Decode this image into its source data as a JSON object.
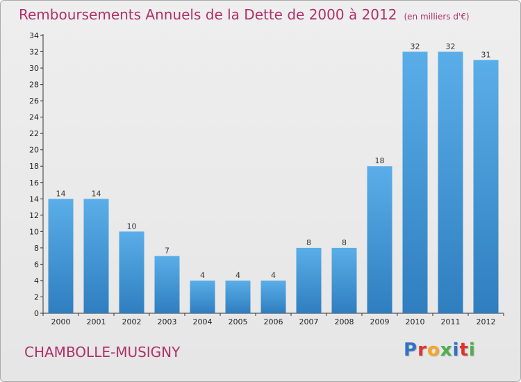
{
  "header": {
    "title": "Remboursements Annuels de la Dette de 2000 à 2012",
    "subtitle": "(en milliers d'€)"
  },
  "footer": {
    "commune": "CHAMBOLLE-MUSIGNY",
    "logo_letters": [
      "P",
      "r",
      "o",
      "x",
      "i",
      "t",
      "i"
    ],
    "logo_colors": [
      "#2e73c8",
      "#e03232",
      "#f5a623",
      "#4caf50",
      "#2e73c8",
      "#e03232",
      "#4caf50"
    ]
  },
  "chart_data": {
    "type": "bar",
    "categories": [
      "2000",
      "2001",
      "2002",
      "2003",
      "2004",
      "2005",
      "2006",
      "2007",
      "2008",
      "2009",
      "2010",
      "2011",
      "2012"
    ],
    "values": [
      14,
      14,
      10,
      7,
      4,
      4,
      4,
      8,
      8,
      18,
      32,
      32,
      31
    ],
    "ylim": [
      0,
      34
    ],
    "yticks": [
      0,
      2,
      4,
      6,
      8,
      10,
      12,
      14,
      16,
      18,
      20,
      22,
      24,
      26,
      28,
      30,
      32,
      34
    ],
    "grid": false,
    "bar_color_top": "#5aaee8",
    "bar_color_bottom": "#2f7ec0"
  }
}
